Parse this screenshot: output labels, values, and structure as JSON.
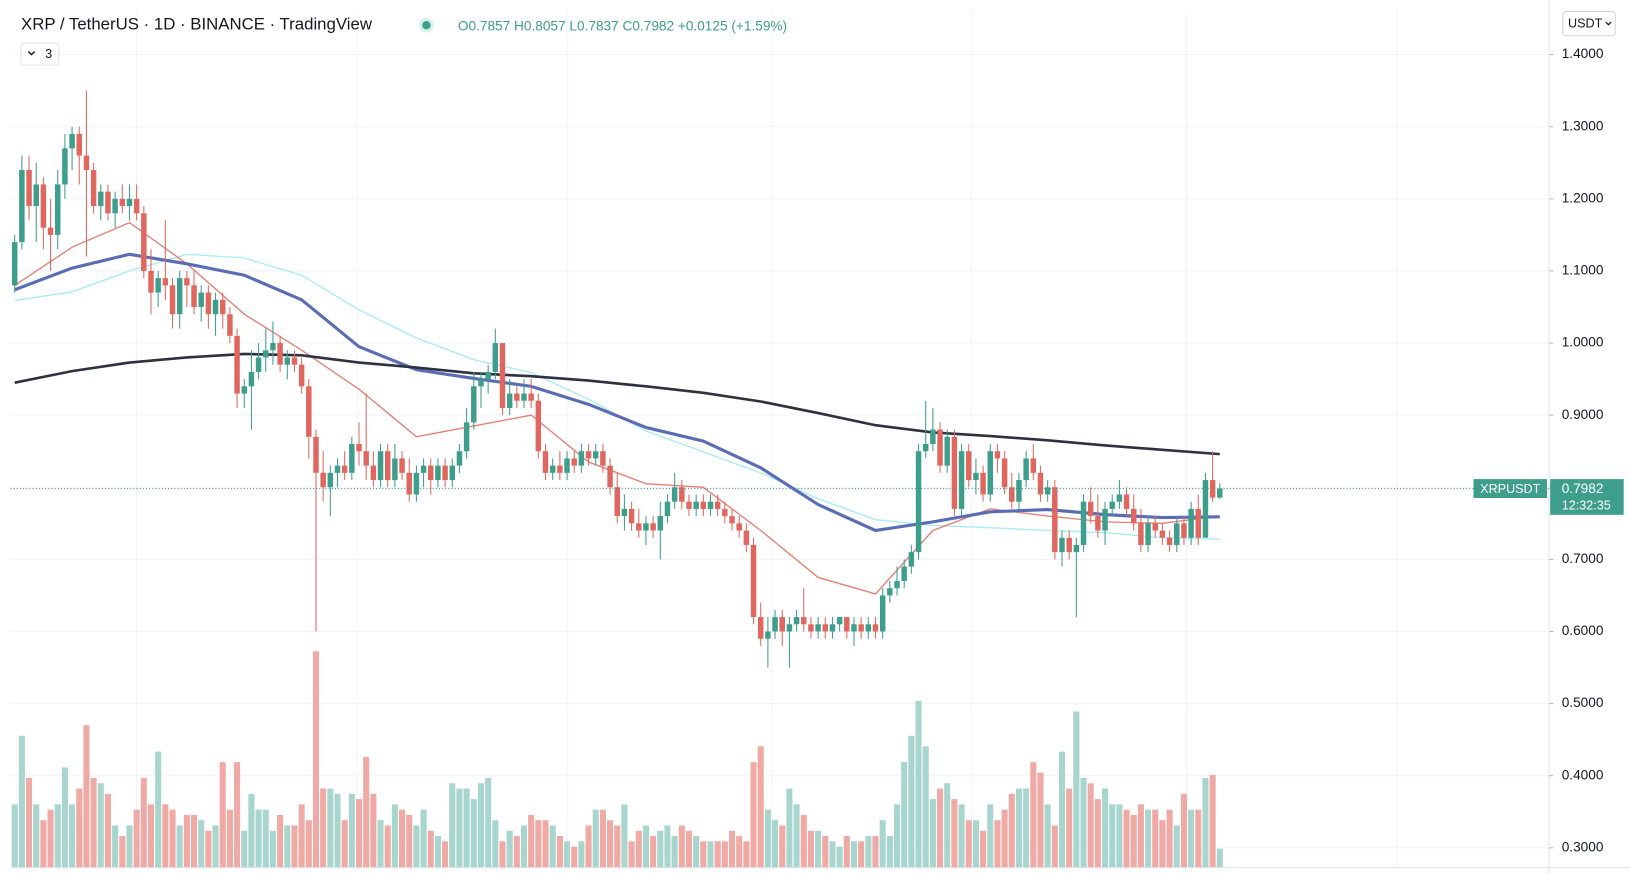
{
  "chart_data": {
    "type": "candlestick",
    "title": "XRP / TetherUS · 1D · BINANCE · TradingView",
    "ohlc_legend": [
      {
        "value": 0.7857,
        "label": "O0.7857"
      },
      {
        "value": 0.8057,
        "label": "H0.8057"
      },
      {
        "value": 0.7837,
        "label": "L0.7837"
      },
      {
        "value": 0.7982,
        "label": "C0.7982"
      },
      {
        "value": 0.0125,
        "label": "+0.0125"
      },
      {
        "value": 1.59,
        "label": "(+1.59%)"
      }
    ],
    "indicator_count": 3,
    "currency": "USDT",
    "symbol_tag": "XRPUSDT",
    "last_price": {
      "value": 0.7982,
      "label": "0.7982"
    },
    "countdown": "12:32:35",
    "up_color": "#3e9e8c",
    "down_color": "#e0675f",
    "up_volume_color": "#a8d6cf",
    "down_volume_color": "#f0aaa5",
    "ylim": [
      0.2724,
      1.4612
    ],
    "yticks": [
      {
        "value": 1.4,
        "label": "1.4000"
      },
      {
        "value": 1.3,
        "label": "1.3000"
      },
      {
        "value": 1.2,
        "label": "1.2000"
      },
      {
        "value": 1.1,
        "label": "1.1000"
      },
      {
        "value": 1.0,
        "label": "1.0000"
      },
      {
        "value": 0.9,
        "label": "0.9000"
      },
      {
        "value": 0.8,
        "label": "0.8000"
      },
      {
        "value": 0.7,
        "label": "0.7000"
      },
      {
        "value": 0.6,
        "label": "0.6000"
      },
      {
        "value": 0.5,
        "label": "0.5000"
      },
      {
        "value": 0.4,
        "label": "0.4000"
      },
      {
        "value": 0.3,
        "label": "0.3000"
      }
    ],
    "grid": true,
    "candles": [
      [
        1.08,
        1.15,
        1.07,
        1.14
      ],
      [
        1.14,
        1.26,
        1.13,
        1.24
      ],
      [
        1.24,
        1.26,
        1.17,
        1.19
      ],
      [
        1.19,
        1.25,
        1.14,
        1.22
      ],
      [
        1.22,
        1.23,
        1.13,
        1.16
      ],
      [
        1.16,
        1.2,
        1.1,
        1.15
      ],
      [
        1.15,
        1.24,
        1.13,
        1.22
      ],
      [
        1.22,
        1.29,
        1.2,
        1.27
      ],
      [
        1.27,
        1.3,
        1.24,
        1.29
      ],
      [
        1.29,
        1.3,
        1.22,
        1.26
      ],
      [
        1.26,
        1.35,
        1.12,
        1.24
      ],
      [
        1.24,
        1.25,
        1.18,
        1.19
      ],
      [
        1.19,
        1.22,
        1.17,
        1.21
      ],
      [
        1.21,
        1.22,
        1.17,
        1.18
      ],
      [
        1.18,
        1.21,
        1.16,
        1.2
      ],
      [
        1.2,
        1.22,
        1.18,
        1.19
      ],
      [
        1.19,
        1.22,
        1.17,
        1.2
      ],
      [
        1.2,
        1.22,
        1.17,
        1.18
      ],
      [
        1.18,
        1.19,
        1.09,
        1.1
      ],
      [
        1.1,
        1.13,
        1.04,
        1.07
      ],
      [
        1.07,
        1.1,
        1.05,
        1.09
      ],
      [
        1.09,
        1.17,
        1.06,
        1.08
      ],
      [
        1.08,
        1.09,
        1.02,
        1.04
      ],
      [
        1.04,
        1.1,
        1.02,
        1.09
      ],
      [
        1.09,
        1.1,
        1.05,
        1.08
      ],
      [
        1.08,
        1.1,
        1.04,
        1.05
      ],
      [
        1.05,
        1.08,
        1.03,
        1.07
      ],
      [
        1.07,
        1.08,
        1.02,
        1.04
      ],
      [
        1.04,
        1.07,
        1.01,
        1.06
      ],
      [
        1.06,
        1.07,
        1.02,
        1.04
      ],
      [
        1.04,
        1.05,
        1.0,
        1.01
      ],
      [
        1.01,
        1.02,
        0.91,
        0.93
      ],
      [
        0.93,
        0.95,
        0.91,
        0.94
      ],
      [
        0.94,
        0.99,
        0.88,
        0.96
      ],
      [
        0.96,
        1.0,
        0.95,
        0.98
      ],
      [
        0.98,
        1.02,
        0.96,
        0.99
      ],
      [
        0.99,
        1.03,
        0.97,
        1.0
      ],
      [
        1.0,
        1.01,
        0.96,
        0.97
      ],
      [
        0.97,
        0.99,
        0.95,
        0.98
      ],
      [
        0.98,
        0.99,
        0.96,
        0.97
      ],
      [
        0.97,
        0.98,
        0.93,
        0.94
      ],
      [
        0.94,
        0.95,
        0.84,
        0.87
      ],
      [
        0.87,
        0.88,
        0.6,
        0.82
      ],
      [
        0.82,
        0.85,
        0.78,
        0.8
      ],
      [
        0.8,
        0.83,
        0.76,
        0.82
      ],
      [
        0.82,
        0.84,
        0.8,
        0.83
      ],
      [
        0.83,
        0.85,
        0.81,
        0.82
      ],
      [
        0.82,
        0.87,
        0.81,
        0.86
      ],
      [
        0.86,
        0.89,
        0.83,
        0.85
      ],
      [
        0.85,
        0.93,
        0.81,
        0.83
      ],
      [
        0.83,
        0.85,
        0.8,
        0.81
      ],
      [
        0.81,
        0.86,
        0.8,
        0.85
      ],
      [
        0.85,
        0.86,
        0.8,
        0.81
      ],
      [
        0.81,
        0.86,
        0.8,
        0.84
      ],
      [
        0.84,
        0.85,
        0.81,
        0.82
      ],
      [
        0.82,
        0.84,
        0.78,
        0.79
      ],
      [
        0.79,
        0.83,
        0.78,
        0.82
      ],
      [
        0.82,
        0.84,
        0.8,
        0.83
      ],
      [
        0.83,
        0.84,
        0.79,
        0.81
      ],
      [
        0.81,
        0.84,
        0.8,
        0.83
      ],
      [
        0.83,
        0.84,
        0.8,
        0.81
      ],
      [
        0.81,
        0.84,
        0.8,
        0.83
      ],
      [
        0.83,
        0.86,
        0.82,
        0.85
      ],
      [
        0.85,
        0.91,
        0.84,
        0.89
      ],
      [
        0.89,
        0.96,
        0.88,
        0.94
      ],
      [
        0.94,
        0.96,
        0.91,
        0.95
      ],
      [
        0.95,
        0.97,
        0.93,
        0.96
      ],
      [
        0.96,
        1.02,
        0.95,
        1.0
      ],
      [
        1.0,
        1.0,
        0.9,
        0.91
      ],
      [
        0.91,
        0.95,
        0.9,
        0.93
      ],
      [
        0.93,
        0.94,
        0.91,
        0.92
      ],
      [
        0.92,
        0.95,
        0.91,
        0.93
      ],
      [
        0.93,
        0.95,
        0.91,
        0.92
      ],
      [
        0.92,
        0.93,
        0.84,
        0.85
      ],
      [
        0.85,
        0.86,
        0.81,
        0.82
      ],
      [
        0.82,
        0.84,
        0.81,
        0.83
      ],
      [
        0.83,
        0.85,
        0.81,
        0.82
      ],
      [
        0.82,
        0.85,
        0.81,
        0.84
      ],
      [
        0.84,
        0.85,
        0.82,
        0.83
      ],
      [
        0.83,
        0.86,
        0.82,
        0.85
      ],
      [
        0.85,
        0.86,
        0.83,
        0.84
      ],
      [
        0.84,
        0.86,
        0.83,
        0.85
      ],
      [
        0.85,
        0.86,
        0.82,
        0.83
      ],
      [
        0.83,
        0.84,
        0.79,
        0.8
      ],
      [
        0.8,
        0.82,
        0.75,
        0.76
      ],
      [
        0.76,
        0.79,
        0.74,
        0.77
      ],
      [
        0.77,
        0.78,
        0.74,
        0.75
      ],
      [
        0.75,
        0.77,
        0.73,
        0.74
      ],
      [
        0.74,
        0.76,
        0.72,
        0.75
      ],
      [
        0.75,
        0.76,
        0.73,
        0.74
      ],
      [
        0.74,
        0.78,
        0.7,
        0.76
      ],
      [
        0.76,
        0.79,
        0.75,
        0.78
      ],
      [
        0.78,
        0.82,
        0.77,
        0.8
      ],
      [
        0.8,
        0.81,
        0.77,
        0.78
      ],
      [
        0.78,
        0.79,
        0.76,
        0.77
      ],
      [
        0.77,
        0.79,
        0.76,
        0.78
      ],
      [
        0.78,
        0.79,
        0.76,
        0.77
      ],
      [
        0.77,
        0.79,
        0.76,
        0.78
      ],
      [
        0.78,
        0.79,
        0.76,
        0.77
      ],
      [
        0.77,
        0.78,
        0.75,
        0.76
      ],
      [
        0.76,
        0.77,
        0.74,
        0.75
      ],
      [
        0.75,
        0.76,
        0.73,
        0.74
      ],
      [
        0.74,
        0.75,
        0.71,
        0.72
      ],
      [
        0.72,
        0.73,
        0.61,
        0.62
      ],
      [
        0.62,
        0.64,
        0.58,
        0.59
      ],
      [
        0.59,
        0.62,
        0.55,
        0.6
      ],
      [
        0.6,
        0.63,
        0.59,
        0.62
      ],
      [
        0.62,
        0.63,
        0.58,
        0.6
      ],
      [
        0.6,
        0.62,
        0.55,
        0.61
      ],
      [
        0.61,
        0.63,
        0.6,
        0.62
      ],
      [
        0.62,
        0.66,
        0.6,
        0.61
      ],
      [
        0.61,
        0.62,
        0.59,
        0.6
      ],
      [
        0.6,
        0.62,
        0.59,
        0.61
      ],
      [
        0.61,
        0.62,
        0.59,
        0.6
      ],
      [
        0.6,
        0.62,
        0.59,
        0.61
      ],
      [
        0.61,
        0.62,
        0.6,
        0.62
      ],
      [
        0.62,
        0.62,
        0.59,
        0.6
      ],
      [
        0.6,
        0.62,
        0.58,
        0.61
      ],
      [
        0.61,
        0.62,
        0.59,
        0.6
      ],
      [
        0.6,
        0.62,
        0.59,
        0.61
      ],
      [
        0.61,
        0.62,
        0.59,
        0.6
      ],
      [
        0.6,
        0.66,
        0.59,
        0.65
      ],
      [
        0.65,
        0.67,
        0.64,
        0.66
      ],
      [
        0.66,
        0.69,
        0.65,
        0.67
      ],
      [
        0.67,
        0.7,
        0.66,
        0.69
      ],
      [
        0.69,
        0.72,
        0.68,
        0.71
      ],
      [
        0.71,
        0.86,
        0.7,
        0.85
      ],
      [
        0.85,
        0.92,
        0.84,
        0.86
      ],
      [
        0.86,
        0.91,
        0.85,
        0.88
      ],
      [
        0.88,
        0.89,
        0.82,
        0.83
      ],
      [
        0.83,
        0.88,
        0.82,
        0.87
      ],
      [
        0.87,
        0.88,
        0.76,
        0.77
      ],
      [
        0.77,
        0.86,
        0.76,
        0.85
      ],
      [
        0.85,
        0.86,
        0.8,
        0.81
      ],
      [
        0.81,
        0.84,
        0.79,
        0.82
      ],
      [
        0.82,
        0.83,
        0.78,
        0.79
      ],
      [
        0.79,
        0.86,
        0.78,
        0.85
      ],
      [
        0.85,
        0.86,
        0.82,
        0.84
      ],
      [
        0.84,
        0.85,
        0.79,
        0.8
      ],
      [
        0.8,
        0.82,
        0.77,
        0.78
      ],
      [
        0.78,
        0.82,
        0.77,
        0.81
      ],
      [
        0.81,
        0.85,
        0.8,
        0.84
      ],
      [
        0.84,
        0.86,
        0.81,
        0.82
      ],
      [
        0.82,
        0.83,
        0.78,
        0.79
      ],
      [
        0.79,
        0.81,
        0.78,
        0.8
      ],
      [
        0.8,
        0.81,
        0.7,
        0.71
      ],
      [
        0.71,
        0.74,
        0.69,
        0.73
      ],
      [
        0.73,
        0.74,
        0.7,
        0.71
      ],
      [
        0.71,
        0.73,
        0.62,
        0.72
      ],
      [
        0.72,
        0.79,
        0.71,
        0.78
      ],
      [
        0.78,
        0.8,
        0.75,
        0.76
      ],
      [
        0.76,
        0.79,
        0.73,
        0.74
      ],
      [
        0.74,
        0.78,
        0.72,
        0.77
      ],
      [
        0.77,
        0.79,
        0.76,
        0.78
      ],
      [
        0.78,
        0.81,
        0.77,
        0.79
      ],
      [
        0.79,
        0.8,
        0.76,
        0.77
      ],
      [
        0.77,
        0.79,
        0.74,
        0.75
      ],
      [
        0.75,
        0.77,
        0.71,
        0.72
      ],
      [
        0.72,
        0.76,
        0.71,
        0.75
      ],
      [
        0.75,
        0.76,
        0.73,
        0.74
      ],
      [
        0.74,
        0.75,
        0.72,
        0.73
      ],
      [
        0.73,
        0.74,
        0.71,
        0.72
      ],
      [
        0.72,
        0.76,
        0.71,
        0.75
      ],
      [
        0.75,
        0.76,
        0.72,
        0.73
      ],
      [
        0.73,
        0.78,
        0.72,
        0.77
      ],
      [
        0.77,
        0.79,
        0.72,
        0.73
      ],
      [
        0.73,
        0.82,
        0.73,
        0.81
      ],
      [
        0.81,
        0.85,
        0.78,
        0.7857
      ],
      [
        0.7857,
        0.8057,
        0.7837,
        0.7982
      ]
    ],
    "volume": [
      60,
      125,
      85,
      60,
      45,
      55,
      60,
      95,
      60,
      75,
      135,
      85,
      80,
      70,
      40,
      30,
      40,
      55,
      85,
      60,
      110,
      60,
      55,
      40,
      50,
      50,
      45,
      35,
      40,
      100,
      55,
      100,
      35,
      70,
      55,
      55,
      35,
      50,
      40,
      40,
      60,
      45,
      205,
      75,
      75,
      70,
      45,
      70,
      65,
      105,
      70,
      45,
      40,
      60,
      55,
      50,
      40,
      55,
      35,
      30,
      25,
      80,
      75,
      75,
      65,
      80,
      85,
      45,
      25,
      35,
      30,
      40,
      50,
      45,
      45,
      40,
      30,
      25,
      20,
      25,
      40,
      55,
      55,
      45,
      40,
      60,
      25,
      35,
      40,
      30,
      35,
      40,
      30,
      40,
      35,
      30,
      25,
      25,
      25,
      25,
      35,
      30,
      25,
      100,
      115,
      55,
      45,
      40,
      75,
      60,
      50,
      35,
      35,
      30,
      25,
      20,
      30,
      25,
      25,
      30,
      30,
      45,
      30,
      60,
      100,
      125,
      158,
      115,
      65,
      75,
      80,
      65,
      60,
      45,
      45,
      35,
      60,
      45,
      55,
      70,
      75,
      75,
      100,
      90,
      60,
      40,
      110,
      75,
      148,
      85,
      80,
      65,
      75,
      60,
      60,
      55,
      50,
      60,
      55,
      55,
      45,
      55,
      40,
      70,
      55,
      55,
      85,
      88,
      18
    ],
    "series": [
      {
        "color": "#a9ecef",
        "x": [
          0,
          8,
          16,
          24,
          32,
          40,
          48,
          56,
          64,
          72,
          80,
          88,
          96,
          104,
          112,
          120,
          128,
          136,
          144,
          152,
          160,
          168
        ],
        "values": [
          1.059,
          1.071,
          1.1,
          1.123,
          1.118,
          1.094,
          1.046,
          1.007,
          0.977,
          0.959,
          0.922,
          0.878,
          0.849,
          0.82,
          0.784,
          0.755,
          0.747,
          0.744,
          0.74,
          0.737,
          0.73,
          0.728
        ]
      },
      {
        "color": "#e58074",
        "x": [
          0,
          8,
          16,
          24,
          32,
          40,
          48,
          56,
          64,
          72,
          80,
          88,
          96,
          104,
          112,
          120,
          128,
          136,
          144,
          152,
          160,
          168
        ],
        "values": [
          1.08,
          1.133,
          1.167,
          1.11,
          1.04,
          0.99,
          0.936,
          0.87,
          0.885,
          0.9,
          0.835,
          0.805,
          0.8,
          0.74,
          0.675,
          0.652,
          0.74,
          0.77,
          0.76,
          0.752,
          0.75,
          0.76
        ]
      },
      {
        "color": "#5a6cb5",
        "x": [
          0,
          8,
          16,
          24,
          32,
          40,
          48,
          56,
          64,
          72,
          80,
          88,
          96,
          104,
          112,
          120,
          128,
          136,
          144,
          152,
          160,
          168
        ],
        "values": [
          1.074,
          1.104,
          1.123,
          1.11,
          1.094,
          1.06,
          0.995,
          0.963,
          0.951,
          0.94,
          0.915,
          0.883,
          0.864,
          0.827,
          0.776,
          0.74,
          0.752,
          0.766,
          0.769,
          0.762,
          0.758,
          0.759
        ]
      },
      {
        "color": "#2e3240",
        "x": [
          0,
          8,
          16,
          24,
          32,
          40,
          48,
          56,
          64,
          72,
          80,
          88,
          96,
          104,
          112,
          120,
          128,
          136,
          144,
          152,
          160,
          168
        ],
        "values": [
          0.945,
          0.961,
          0.973,
          0.98,
          0.985,
          0.983,
          0.973,
          0.966,
          0.958,
          0.954,
          0.948,
          0.94,
          0.931,
          0.919,
          0.903,
          0.886,
          0.876,
          0.871,
          0.865,
          0.858,
          0.852,
          0.846
        ]
      }
    ]
  }
}
